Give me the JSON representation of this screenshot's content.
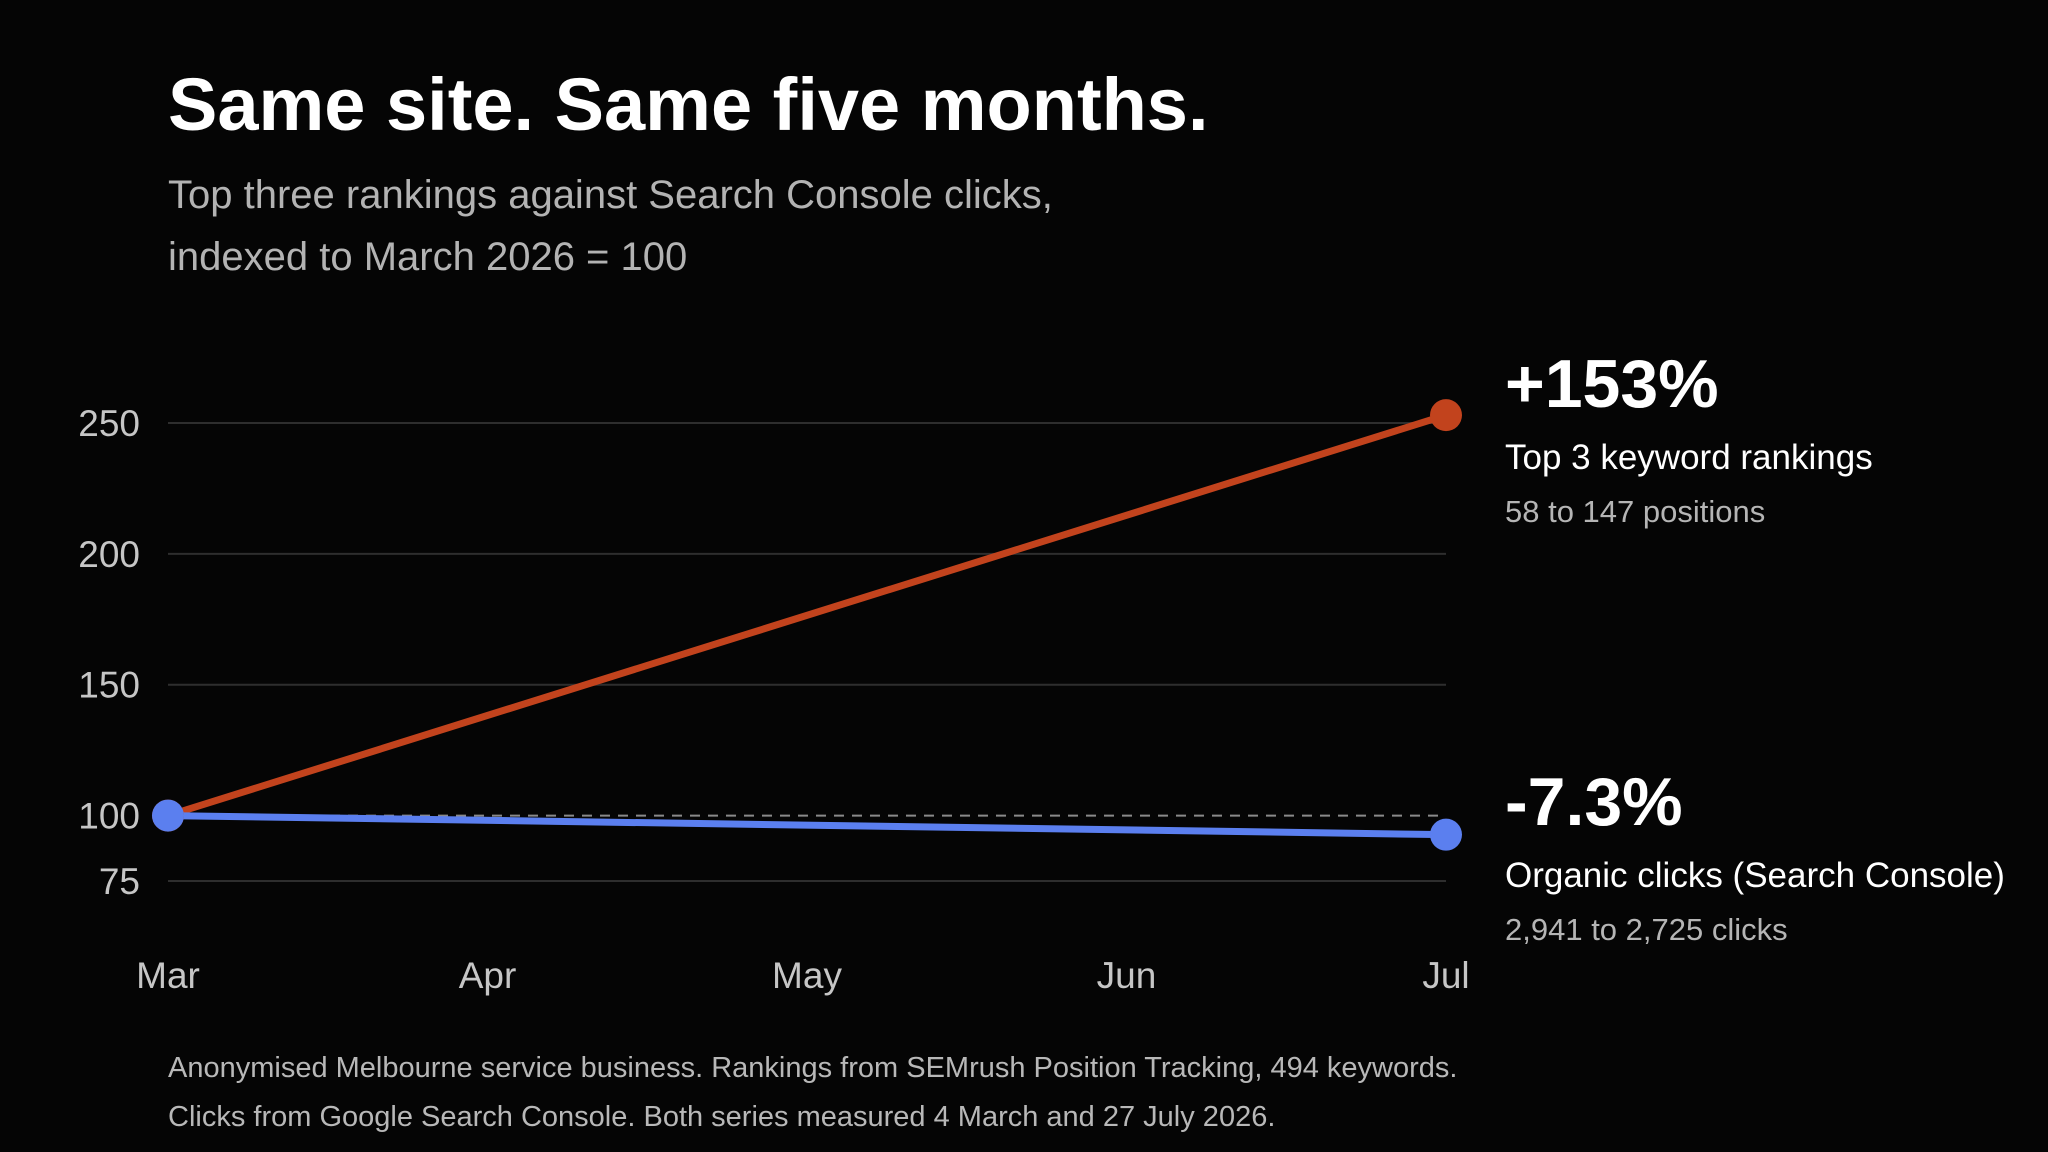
{
  "header": {
    "title": "Same site. Same five months.",
    "subtitle_lines": [
      "Top three rankings against Search Console clicks,",
      "indexed to March 2026 = 100"
    ]
  },
  "annotations": {
    "rankings": {
      "big": "+153%",
      "label": "Top 3 keyword rankings",
      "sublabel": "58 to 147 positions"
    },
    "clicks": {
      "big": "-7.3%",
      "label": "Organic clicks (Search Console)",
      "sublabel": "2,941 to 2,725 clicks"
    }
  },
  "footnote_lines": [
    "Anonymised Melbourne service business. Rankings from SEMrush Position Tracking, 494 keywords.",
    "Clicks from Google Search Console. Both series measured 4 March and 27 July 2026."
  ],
  "colors": {
    "background": "#050505",
    "rankings": "#c2431d",
    "clicks": "#5b7fef",
    "grid": "#2e2e2e",
    "baseline": "#8a8a8a"
  },
  "chart_data": {
    "type": "line",
    "x": [
      "Mar",
      "Apr",
      "May",
      "Jun",
      "Jul"
    ],
    "x_range": [
      0,
      4
    ],
    "y_ticks": [
      75,
      100,
      150,
      200,
      250
    ],
    "ylim": [
      75,
      250
    ],
    "grid": true,
    "baseline": 100,
    "series": [
      {
        "key": "rankings",
        "name": "Top 3 keyword rankings",
        "points": [
          [
            0,
            100
          ],
          [
            4,
            253
          ]
        ]
      },
      {
        "key": "clicks",
        "name": "Organic clicks (Search Console)",
        "points": [
          [
            0,
            100
          ],
          [
            4,
            92.7
          ]
        ]
      }
    ]
  }
}
